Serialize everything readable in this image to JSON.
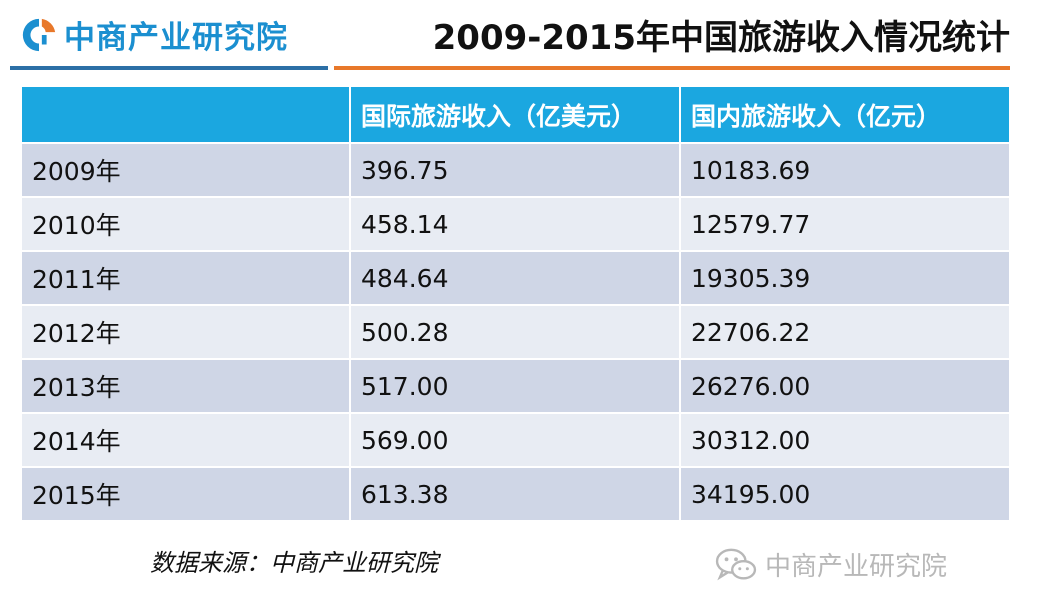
{
  "header": {
    "logo_text": "中商产业研究院",
    "title": "2009-2015年中国旅游收入情况统计",
    "brand_color": "#1b8fd0",
    "accent_orange": "#e8782a"
  },
  "table": {
    "columns": [
      "",
      "国际旅游收入（亿美元）",
      "国内旅游收入（亿元）"
    ],
    "rows": [
      [
        "2009年",
        "396.75",
        "10183.69"
      ],
      [
        "2010年",
        "458.14",
        "12579.77"
      ],
      [
        "2011年",
        "484.64",
        "19305.39"
      ],
      [
        "2012年",
        "500.28",
        "22706.22"
      ],
      [
        "2013年",
        "517.00",
        "26276.00"
      ],
      [
        "2014年",
        "569.00",
        "30312.00"
      ],
      [
        "2015年",
        "613.38",
        "34195.00"
      ]
    ],
    "header_color": "#1ba7e0"
  },
  "footer": {
    "source": "数据来源：中商产业研究院",
    "watermark": "中商产业研究院",
    "watermark_icon": "wechat-icon"
  }
}
